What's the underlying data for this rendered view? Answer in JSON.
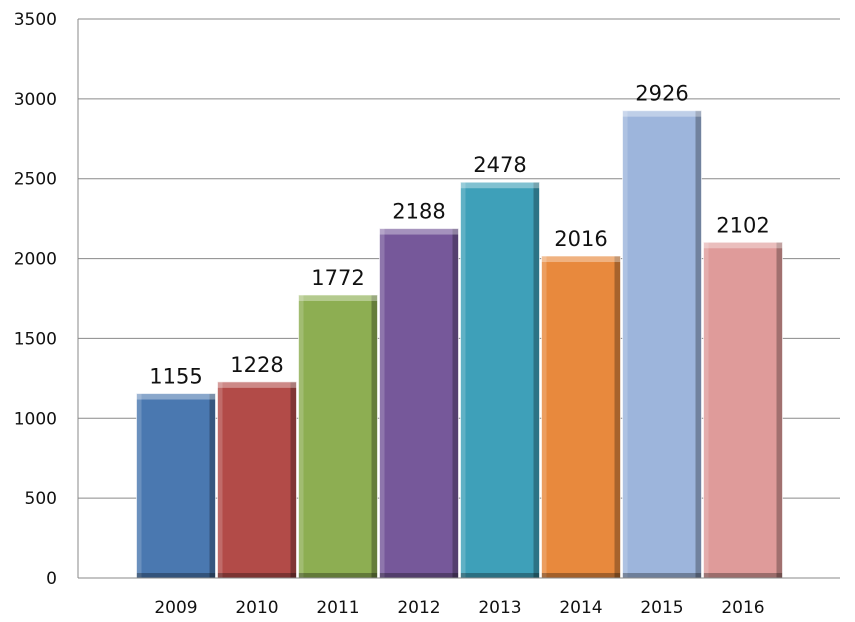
{
  "chart_data": {
    "type": "bar",
    "title": "",
    "xlabel": "",
    "ylabel": "",
    "ylim": [
      0,
      3500
    ],
    "yticks": [
      0,
      500,
      1000,
      1500,
      2000,
      2500,
      3000,
      3500
    ],
    "grid": true,
    "legend": "none",
    "categories": [
      "2009",
      "2010",
      "2011",
      "2012",
      "2013",
      "2014",
      "2015",
      "2016"
    ],
    "values": [
      1155,
      1228,
      1772,
      2188,
      2478,
      2016,
      2926,
      2102
    ],
    "colors": [
      "#4a78b0",
      "#b24b48",
      "#8dae52",
      "#76589a",
      "#3ea0b9",
      "#e8893d",
      "#9db5dc",
      "#df9b9a"
    ]
  }
}
